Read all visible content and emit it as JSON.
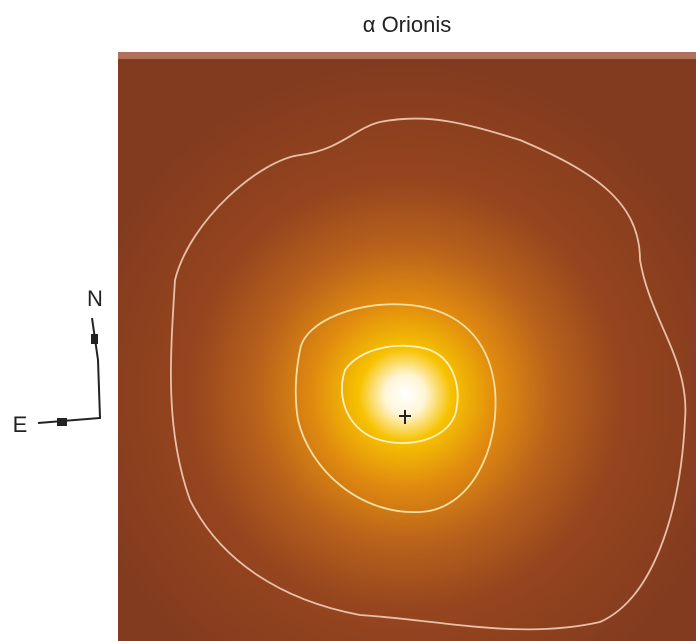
{
  "title": "α Orionis",
  "compass": {
    "north": "N",
    "east": "E"
  }
}
